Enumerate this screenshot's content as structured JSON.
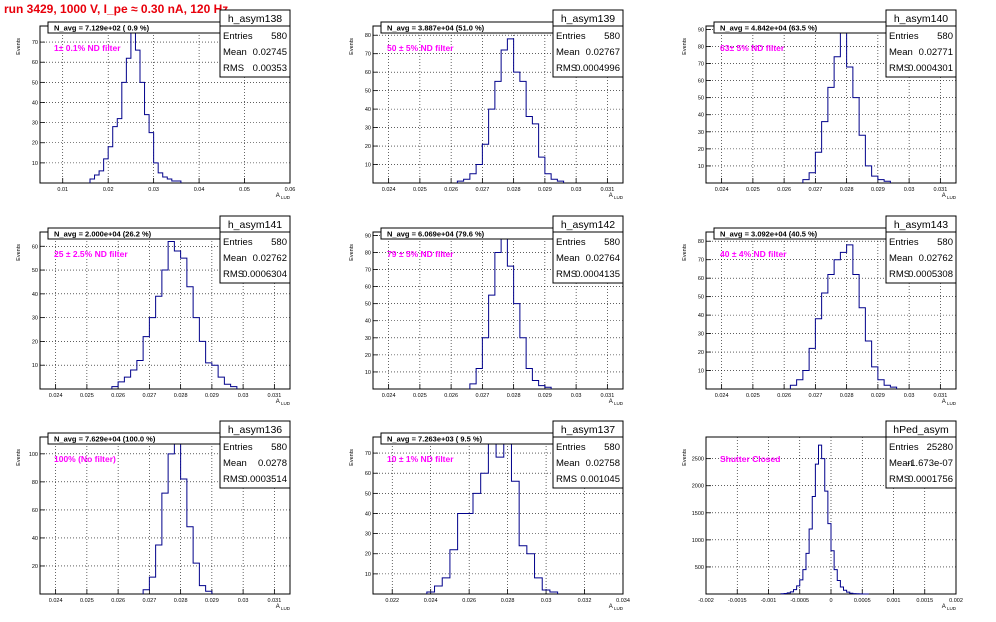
{
  "header": {
    "run_title": "run 3429,  1000 V, I_pe ≈ 0.30 nA, 120 Hz"
  },
  "stats_labels": {
    "entries": "Entries",
    "mean": "Mean",
    "rms": "RMS"
  },
  "chart_data": [
    {
      "type": "bar",
      "name": "h_asym138",
      "navg_label": "N_avg = 7.129e+02 ( 0.9 %)",
      "filter_label": "1± 0.1% ND filter",
      "entries": "580",
      "mean": "0.02745",
      "rms": "0.00353",
      "xlabel": "A_LUD",
      "ylabel": "Events",
      "xlim": [
        0.005,
        0.06
      ],
      "ylim": [
        0,
        78
      ],
      "xticks": [
        0.01,
        0.02,
        0.03,
        0.04,
        0.05,
        0.06
      ],
      "xtick_labels": [
        "0.01",
        "0.02",
        "0.03",
        "0.04",
        "0.05",
        "0.06"
      ],
      "yticks": [
        10,
        20,
        30,
        40,
        50,
        60,
        70
      ],
      "bin_start": 0.016,
      "bin_width": 0.001,
      "values": [
        2,
        4,
        6,
        12,
        18,
        28,
        32,
        50,
        62,
        76,
        66,
        50,
        34,
        25,
        10,
        5,
        3,
        2,
        1,
        1
      ]
    },
    {
      "type": "bar",
      "name": "h_asym139",
      "navg_label": "N_avg = 3.887e+04 (51.0 %)",
      "filter_label": "50 ± 5% ND filter",
      "entries": "580",
      "mean": "0.02767",
      "rms": "0.0004996",
      "xlabel": "A_LUD",
      "ylabel": "Events",
      "xlim": [
        0.0235,
        0.0315
      ],
      "ylim": [
        0,
        85
      ],
      "xticks": [
        0.024,
        0.025,
        0.026,
        0.027,
        0.028,
        0.029,
        0.03,
        0.031
      ],
      "xtick_labels": [
        "0.024",
        "0.025",
        "0.026",
        "0.027",
        "0.028",
        "0.029",
        "0.03",
        "0.031"
      ],
      "yticks": [
        10,
        20,
        30,
        40,
        50,
        60,
        70,
        80
      ],
      "bin_start": 0.0262,
      "bin_width": 0.0002,
      "values": [
        1,
        2,
        5,
        10,
        21,
        40,
        55,
        72,
        78,
        60,
        55,
        36,
        32,
        14,
        5,
        2,
        1
      ]
    },
    {
      "type": "bar",
      "name": "h_asym140",
      "navg_label": "N_avg = 4.842e+04 (63.5 %)",
      "filter_label": "63± 5% ND filter",
      "entries": "580",
      "mean": "0.02771",
      "rms": "0.0004301",
      "xlabel": "A_LUD",
      "ylabel": "Events",
      "xlim": [
        0.0235,
        0.0315
      ],
      "ylim": [
        0,
        92
      ],
      "xticks": [
        0.024,
        0.025,
        0.026,
        0.027,
        0.028,
        0.029,
        0.03,
        0.031
      ],
      "xtick_labels": [
        "0.024",
        "0.025",
        "0.026",
        "0.027",
        "0.028",
        "0.029",
        "0.03",
        "0.031"
      ],
      "yticks": [
        10,
        20,
        30,
        40,
        50,
        60,
        70,
        80,
        90
      ],
      "bin_start": 0.0266,
      "bin_width": 0.0002,
      "values": [
        2,
        6,
        18,
        36,
        56,
        74,
        88,
        68,
        50,
        28,
        10,
        4,
        2,
        1
      ]
    },
    {
      "type": "bar",
      "name": "h_asym141",
      "navg_label": "N_avg = 2.000e+04 (26.2 %)",
      "filter_label": "25 ± 2.5% ND filter",
      "entries": "580",
      "mean": "0.02762",
      "rms": "0.0006304",
      "xlabel": "A_LUD",
      "ylabel": "Events",
      "xlim": [
        0.0235,
        0.0315
      ],
      "ylim": [
        0,
        66
      ],
      "xticks": [
        0.024,
        0.025,
        0.026,
        0.027,
        0.028,
        0.029,
        0.03,
        0.031
      ],
      "xtick_labels": [
        "0.024",
        "0.025",
        "0.026",
        "0.027",
        "0.028",
        "0.029",
        "0.03",
        "0.031"
      ],
      "yticks": [
        10,
        20,
        30,
        40,
        50,
        60
      ],
      "bin_start": 0.0258,
      "bin_width": 0.0002,
      "values": [
        1,
        3,
        5,
        8,
        12,
        22,
        30,
        39,
        50,
        62,
        58,
        55,
        43,
        30,
        20,
        11,
        10,
        5,
        2,
        1
      ]
    },
    {
      "type": "bar",
      "name": "h_asym142",
      "navg_label": "N_avg = 6.069e+04 (79.6 %)",
      "filter_label": "79 ± 5% ND filter",
      "entries": "580",
      "mean": "0.02764",
      "rms": "0.0004135",
      "xlabel": "A_LUD",
      "ylabel": "Events",
      "xlim": [
        0.0235,
        0.0315
      ],
      "ylim": [
        0,
        92
      ],
      "xticks": [
        0.024,
        0.025,
        0.026,
        0.027,
        0.028,
        0.029,
        0.03,
        0.031
      ],
      "xtick_labels": [
        "0.024",
        "0.025",
        "0.026",
        "0.027",
        "0.028",
        "0.029",
        "0.03",
        "0.031"
      ],
      "yticks": [
        10,
        20,
        30,
        40,
        50,
        60,
        70,
        80,
        90
      ],
      "bin_start": 0.0266,
      "bin_width": 0.0002,
      "values": [
        3,
        12,
        30,
        55,
        80,
        88,
        72,
        50,
        30,
        12,
        5,
        2,
        1
      ]
    },
    {
      "type": "bar",
      "name": "h_asym143",
      "navg_label": "N_avg = 3.092e+04 (40.5 %)",
      "filter_label": "40 ± 4% ND filter",
      "entries": "580",
      "mean": "0.02762",
      "rms": "0.0005308",
      "xlabel": "A_LUD",
      "ylabel": "Events",
      "xlim": [
        0.0235,
        0.0315
      ],
      "ylim": [
        0,
        85
      ],
      "xticks": [
        0.024,
        0.025,
        0.026,
        0.027,
        0.028,
        0.029,
        0.03,
        0.031
      ],
      "xtick_labels": [
        "0.024",
        "0.025",
        "0.026",
        "0.027",
        "0.028",
        "0.029",
        "0.03",
        "0.031"
      ],
      "yticks": [
        10,
        20,
        30,
        40,
        50,
        60,
        70,
        80
      ],
      "bin_start": 0.0262,
      "bin_width": 0.0002,
      "values": [
        2,
        5,
        10,
        22,
        38,
        52,
        62,
        70,
        74,
        78,
        62,
        44,
        26,
        12,
        5,
        2,
        1
      ]
    },
    {
      "type": "bar",
      "name": "h_asym136",
      "navg_label": "N_avg = 7.629e+04 (100.0 %)",
      "filter_label": "100% (No filter)",
      "entries": "580",
      "mean": "0.0278",
      "rms": "0.0003514",
      "xlabel": "A_LUD",
      "ylabel": "Events",
      "xlim": [
        0.0235,
        0.0315
      ],
      "ylim": [
        0,
        112
      ],
      "xticks": [
        0.024,
        0.025,
        0.026,
        0.027,
        0.028,
        0.029,
        0.03,
        0.031
      ],
      "xtick_labels": [
        "0.024",
        "0.025",
        "0.026",
        "0.027",
        "0.028",
        "0.029",
        "0.03",
        "0.031"
      ],
      "yticks": [
        20,
        40,
        60,
        80,
        100
      ],
      "bin_start": 0.0268,
      "bin_width": 0.0002,
      "values": [
        3,
        12,
        35,
        72,
        100,
        108,
        82,
        48,
        22,
        6,
        2
      ]
    },
    {
      "type": "bar",
      "name": "h_asym137",
      "navg_label": "N_avg = 7.263e+03 ( 9.5 %)",
      "filter_label": "10 ± 1% ND filter",
      "entries": "580",
      "mean": "0.02758",
      "rms": "0.001045",
      "xlabel": "A_LUD",
      "ylabel": "Events",
      "xlim": [
        0.021,
        0.034
      ],
      "ylim": [
        0,
        78
      ],
      "xticks": [
        0.022,
        0.024,
        0.026,
        0.028,
        0.03,
        0.032,
        0.034
      ],
      "xtick_labels": [
        "0.022",
        "0.024",
        "0.026",
        "0.028",
        "0.03",
        "0.032",
        "0.034"
      ],
      "yticks": [
        10,
        20,
        30,
        40,
        50,
        60,
        70
      ],
      "bin_start": 0.0238,
      "bin_width": 0.0004,
      "values": [
        1,
        4,
        8,
        22,
        40,
        40,
        50,
        60,
        75,
        68,
        75,
        56,
        24,
        20,
        8,
        2,
        1
      ]
    },
    {
      "type": "bar",
      "name": "hPed_asym",
      "navg_label": "",
      "filter_label": "Shutter Closed",
      "entries": "25280",
      "mean": "-1.673e-07",
      "rms": "0.0001756",
      "xlabel": "A_LUD",
      "ylabel": "Events",
      "xlim": [
        -0.002,
        0.002
      ],
      "ylim": [
        0,
        2900
      ],
      "xticks": [
        -0.002,
        -0.0015,
        -0.001,
        -0.0005,
        0,
        0.0005,
        0.001,
        0.0015,
        0.002
      ],
      "xtick_labels": [
        "-0.002",
        "-0.0015",
        "-0.001",
        "-0.0005",
        "0",
        "0.0005",
        "0.001",
        "0.0015",
        "0.002"
      ],
      "yticks": [
        500,
        1000,
        1500,
        2000,
        2500
      ],
      "bin_start": -0.0008,
      "bin_width": 5e-05,
      "values": [
        5,
        10,
        20,
        40,
        80,
        150,
        260,
        450,
        750,
        1200,
        1800,
        2400,
        2750,
        2500,
        1900,
        1300,
        800,
        450,
        250,
        130,
        70,
        35,
        15,
        8,
        4,
        2,
        1,
        1
      ]
    }
  ]
}
